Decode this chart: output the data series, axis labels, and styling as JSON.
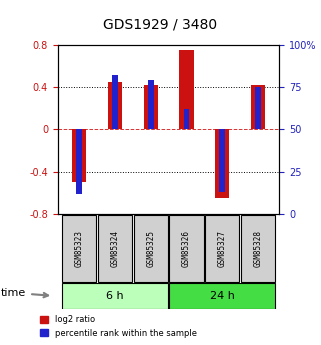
{
  "title": "GDS1929 / 3480",
  "samples": [
    "GSM85323",
    "GSM85324",
    "GSM85325",
    "GSM85326",
    "GSM85327",
    "GSM85328"
  ],
  "log2_ratio": [
    -0.5,
    0.45,
    0.42,
    0.75,
    -0.65,
    0.42
  ],
  "percentile_rank": [
    12,
    82,
    79,
    62,
    13,
    75
  ],
  "groups": [
    {
      "label": "6 h",
      "indices": [
        0,
        1,
        2
      ],
      "color": "#bbffbb"
    },
    {
      "label": "24 h",
      "indices": [
        3,
        4,
        5
      ],
      "color": "#44dd44"
    }
  ],
  "ylim_left": [
    -0.8,
    0.8
  ],
  "ylim_right": [
    0,
    100
  ],
  "bar_color_red": "#cc1111",
  "bar_color_blue": "#2222cc",
  "bar_width": 0.4,
  "left_ticks": [
    -0.8,
    -0.4,
    0,
    0.4,
    0.8
  ],
  "right_ticks": [
    0,
    25,
    50,
    75,
    100
  ],
  "right_tick_labels": [
    "0",
    "25",
    "50",
    "75",
    "100%"
  ],
  "ylabel_left_color": "#cc1111",
  "ylabel_right_color": "#2222bb",
  "time_label": "time",
  "legend_entries": [
    "log2 ratio",
    "percentile rank within the sample"
  ],
  "legend_colors": [
    "#cc1111",
    "#2222cc"
  ],
  "sample_bg_color": "#d0d0d0",
  "dotted_color": "#000000",
  "zero_line_color": "#cc0000"
}
